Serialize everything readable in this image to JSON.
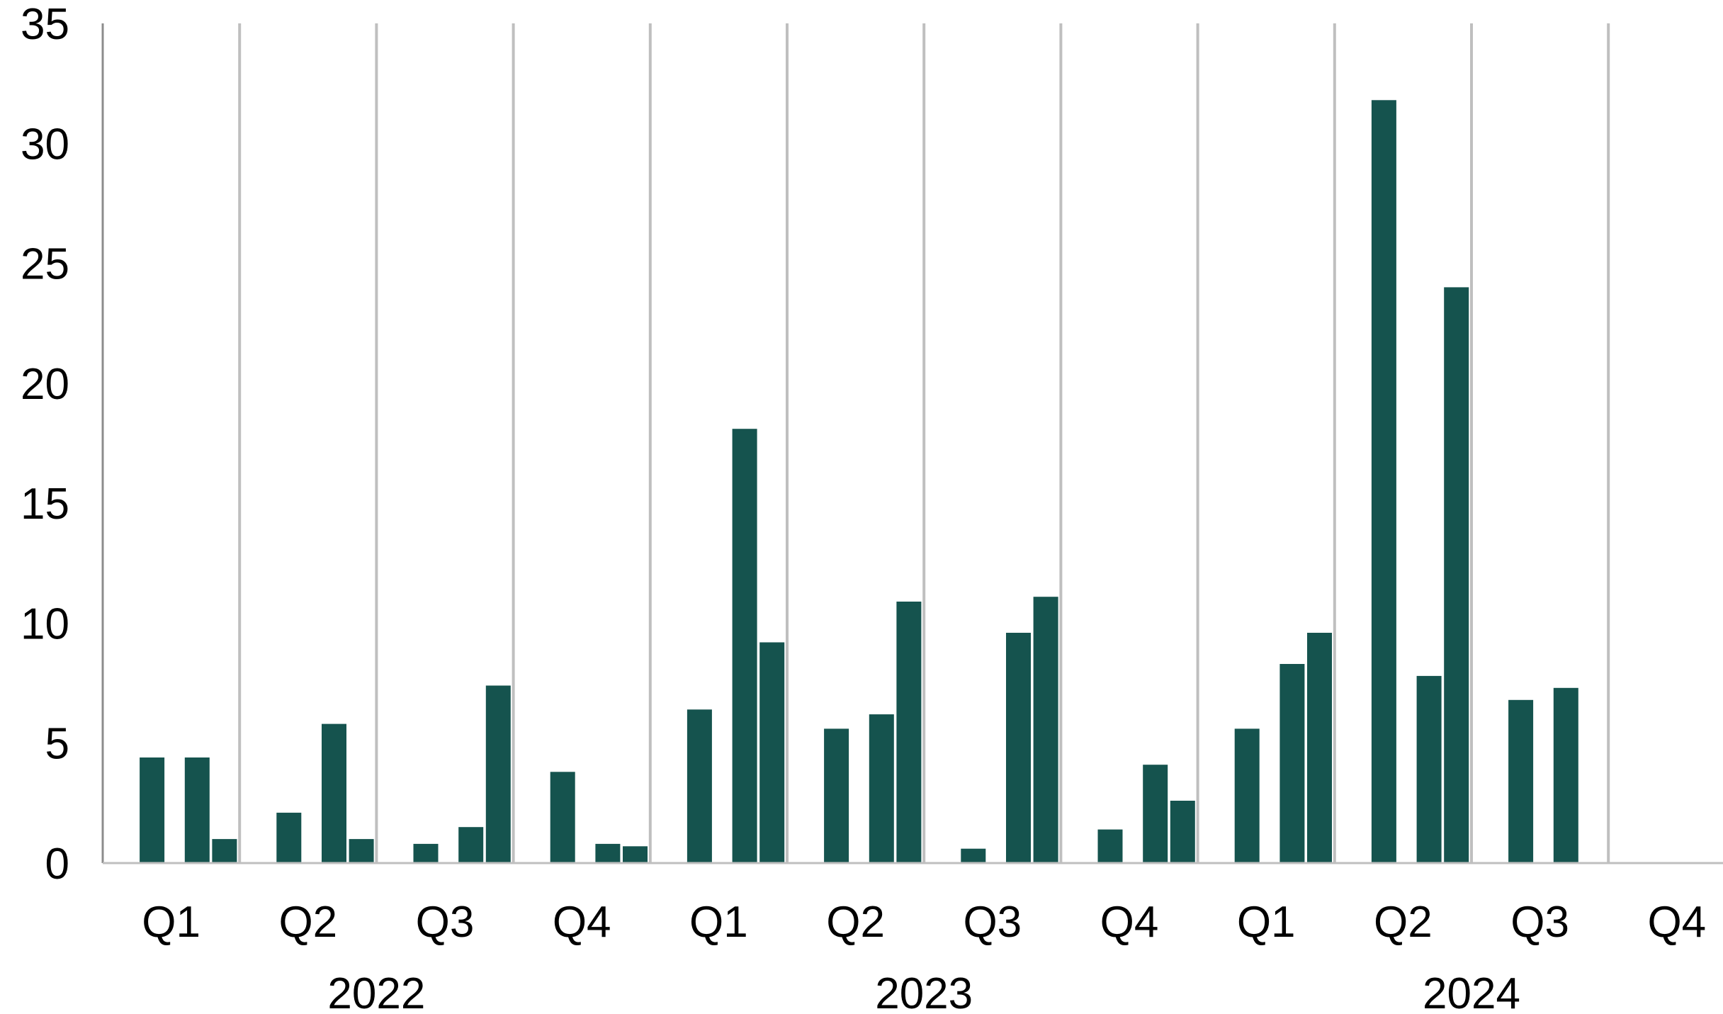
{
  "chart_data": {
    "type": "bar",
    "title": "",
    "xlabel": "",
    "ylabel": "",
    "ylim": [
      0,
      35
    ],
    "yticks": [
      "0",
      "5",
      "10",
      "15",
      "20",
      "25",
      "30",
      "35"
    ],
    "grid": "vertical lines between quarters",
    "legend": "none",
    "bar_color": "#15534e",
    "gridline_color": "#bfbfbf",
    "axis_color": "#8c8c8c",
    "years": [
      "2022",
      "2023",
      "2024"
    ],
    "quarter_labels": [
      "Q1",
      "Q2",
      "Q3",
      "Q4"
    ],
    "x": [
      "2022-01",
      "2022-02",
      "2022-03",
      "2022-04",
      "2022-05",
      "2022-06",
      "2022-07",
      "2022-08",
      "2022-09",
      "2022-10",
      "2022-11",
      "2022-12",
      "2023-01",
      "2023-02",
      "2023-03",
      "2023-04",
      "2023-05",
      "2023-06",
      "2023-07",
      "2023-08",
      "2023-09",
      "2023-10",
      "2023-11",
      "2023-12",
      "2024-01",
      "2024-02",
      "2024-03",
      "2024-04",
      "2024-05",
      "2024-06",
      "2024-07",
      "2024-08",
      "2024-09",
      "2024-10",
      "2024-11",
      "2024-12"
    ],
    "values": [
      4.4,
      4.4,
      1.0,
      2.1,
      5.8,
      1.0,
      0.8,
      1.5,
      7.4,
      3.8,
      0.8,
      0.7,
      6.4,
      18.1,
      9.2,
      5.6,
      6.2,
      10.9,
      0.6,
      9.6,
      11.1,
      1.4,
      4.1,
      2.6,
      5.6,
      8.3,
      9.6,
      31.8,
      7.8,
      24.0,
      6.8,
      7.3,
      null,
      null,
      null,
      null
    ]
  }
}
